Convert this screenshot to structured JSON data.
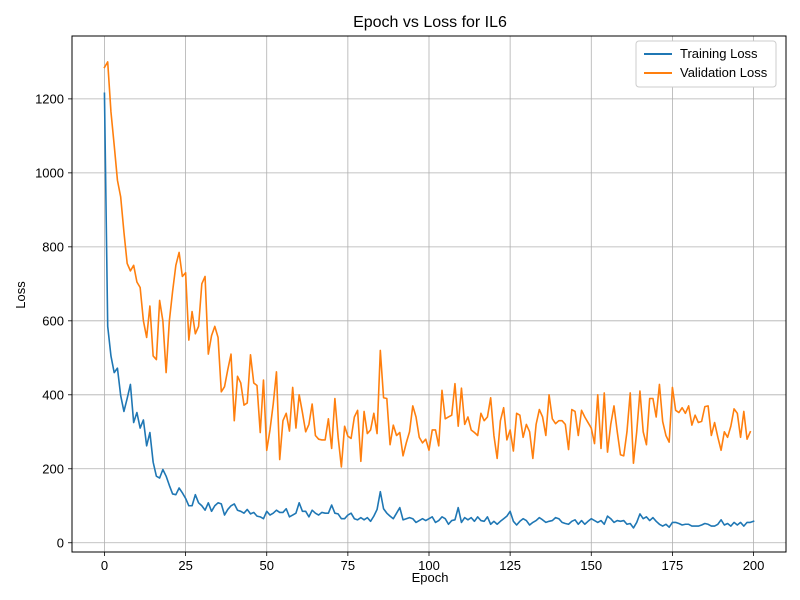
{
  "chart_data": {
    "type": "line",
    "title": "Epoch vs Loss for IL6",
    "xlabel": "Epoch",
    "ylabel": "Loss",
    "xlim": [
      -10,
      210
    ],
    "ylim": [
      -25,
      1370
    ],
    "xticks": [
      0,
      25,
      50,
      75,
      100,
      125,
      150,
      175,
      200
    ],
    "yticks": [
      0,
      200,
      400,
      600,
      800,
      1000,
      1200
    ],
    "grid": true,
    "legend_position": "top-right",
    "series": [
      {
        "name": "Training Loss",
        "color": "#1f77b4",
        "values": [
          1215,
          585,
          505,
          460,
          472,
          398,
          355,
          390,
          428,
          325,
          352,
          310,
          332,
          262,
          298,
          218,
          180,
          175,
          198,
          180,
          155,
          132,
          130,
          148,
          135,
          120,
          100,
          100,
          130,
          108,
          100,
          88,
          108,
          85,
          100,
          108,
          105,
          75,
          90,
          100,
          105,
          88,
          85,
          80,
          90,
          78,
          82,
          72,
          70,
          65,
          85,
          75,
          80,
          88,
          82,
          82,
          92,
          70,
          75,
          80,
          108,
          85,
          85,
          70,
          88,
          80,
          75,
          82,
          80,
          80,
          102,
          80,
          78,
          65,
          65,
          75,
          80,
          65,
          62,
          68,
          62,
          68,
          58,
          72,
          90,
          138,
          92,
          80,
          72,
          65,
          80,
          95,
          62,
          65,
          68,
          65,
          55,
          60,
          65,
          60,
          65,
          70,
          55,
          60,
          70,
          65,
          50,
          60,
          62,
          95,
          55,
          68,
          62,
          68,
          58,
          70,
          60,
          58,
          70,
          50,
          58,
          50,
          58,
          65,
          72,
          85,
          58,
          48,
          58,
          65,
          60,
          48,
          55,
          60,
          68,
          62,
          55,
          58,
          60,
          68,
          65,
          55,
          52,
          50,
          58,
          62,
          50,
          60,
          50,
          58,
          65,
          60,
          55,
          60,
          50,
          72,
          65,
          55,
          60,
          58,
          60,
          50,
          52,
          40,
          55,
          78,
          65,
          70,
          60,
          68,
          58,
          50,
          45,
          50,
          42,
          55,
          55,
          52,
          48,
          50,
          50,
          45,
          45,
          45,
          48,
          52,
          50,
          45,
          45,
          50,
          62,
          48,
          52,
          45,
          55,
          48,
          55,
          45,
          55,
          55,
          58
        ]
      },
      {
        "name": "Validation Loss",
        "color": "#ff7f0e",
        "values": [
          1285,
          1300,
          1165,
          1075,
          980,
          935,
          840,
          755,
          735,
          750,
          705,
          690,
          600,
          555,
          640,
          505,
          495,
          655,
          600,
          460,
          600,
          680,
          750,
          785,
          720,
          730,
          548,
          625,
          565,
          585,
          700,
          720,
          510,
          560,
          585,
          555,
          408,
          422,
          468,
          510,
          330,
          450,
          432,
          372,
          378,
          508,
          432,
          425,
          298,
          440,
          250,
          305,
          375,
          462,
          225,
          330,
          350,
          302,
          420,
          310,
          400,
          352,
          300,
          320,
          375,
          290,
          280,
          278,
          278,
          335,
          255,
          390,
          285,
          205,
          315,
          288,
          282,
          340,
          358,
          220,
          355,
          295,
          305,
          350,
          295,
          520,
          392,
          390,
          265,
          318,
          290,
          298,
          235,
          270,
          300,
          370,
          340,
          285,
          270,
          280,
          250,
          305,
          305,
          262,
          412,
          335,
          340,
          345,
          430,
          315,
          418,
          320,
          340,
          305,
          298,
          290,
          350,
          330,
          340,
          392,
          290,
          228,
          330,
          365,
          278,
          305,
          248,
          350,
          345,
          285,
          320,
          300,
          228,
          320,
          360,
          340,
          290,
          400,
          335,
          322,
          330,
          330,
          320,
          252,
          360,
          355,
          290,
          358,
          340,
          325,
          310,
          268,
          400,
          255,
          405,
          245,
          320,
          370,
          300,
          238,
          235,
          300,
          405,
          215,
          300,
          410,
          300,
          265,
          390,
          390,
          340,
          428,
          328,
          290,
          272,
          420,
          358,
          352,
          365,
          350,
          370,
          318,
          345,
          325,
          328,
          368,
          370,
          290,
          325,
          285,
          250,
          300,
          285,
          315,
          362,
          350,
          285,
          355,
          280,
          300
        ]
      }
    ]
  }
}
